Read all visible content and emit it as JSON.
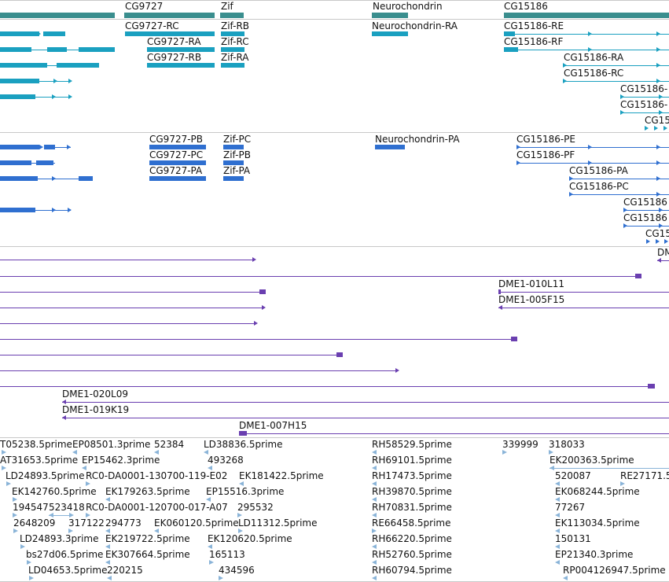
{
  "colors": {
    "gene": "#3a8e8e",
    "transcript_rna": "#1aa0c0",
    "transcript_protein": "#2f6fd0",
    "clone": "#6a3fb0",
    "est": "#8ab4d8",
    "separator": "#c8c8c8"
  },
  "tracks": {
    "genes": {
      "labels": [
        "CG9727",
        "Zif",
        "Neurochondrin",
        "CG15186"
      ]
    },
    "rna": {
      "labels": [
        "CG9727-RC",
        "Zif-RB",
        "Neurochondrin-RA",
        "CG15186-RE",
        "CG9727-RA",
        "Zif-RC",
        "CG15186-RF",
        "CG9727-RB",
        "Zif-RA",
        "CG15186-RA",
        "CG15186-RC",
        "CG15186-",
        "CG15186-",
        "CG15"
      ]
    },
    "protein": {
      "labels": [
        "CG9727-PB",
        "Zif-PC",
        "Neurochondrin-PA",
        "CG15186-PE",
        "CG9727-PC",
        "Zif-PB",
        "CG15186-PF",
        "CG9727-PA",
        "Zif-PA",
        "CG15186-PA",
        "CG15186-PC",
        "CG15186",
        "CG15186",
        "CG15"
      ]
    },
    "clones": {
      "labels": [
        "DM",
        "DME1-010L11",
        "DME1-005F15",
        "DME1-020L09",
        "DME1-019K19",
        "DME1-007H15"
      ]
    },
    "ests": {
      "labels": [
        "T05238.5prime",
        "EP08501.3prime",
        "52384",
        "LD38836.5prime",
        "RH58529.5prime",
        "339999",
        "318033",
        "AT31653.5prime",
        "EP15462.3prime",
        "493268",
        "RH69101.5prime",
        "EK200363.5prime",
        "LD24893.5prime",
        "RC0-DA0001-130700-119-E02",
        "EK181422.5prime",
        "RH17473.5prime",
        "520087",
        "RE27171.5",
        "EK142760.5prime",
        "EK179263.5prime",
        "EP15516.3prime",
        "RH39870.5prime",
        "EK068244.5prime",
        "194547",
        "523418",
        "RC0-DA0001-120700-017-A07",
        "295532",
        "RH70831.5prime",
        "77267",
        "2648209",
        "317122",
        "294773",
        "EK060120.5prime",
        "LD11312.5prime",
        "RE66458.5prime",
        "EK113034.5prime",
        "LD24893.3prime",
        "EK219722.5prime",
        "EK120620.5prime",
        "RH66220.5prime",
        "150131",
        "bs27d06.5prime",
        "EK307664.5prime",
        "165113",
        "RH52760.5prime",
        "EP21340.3prime",
        "LD04653.5prime",
        "220215",
        "434596",
        "RH60794.5prime",
        "RP004126947.5prime"
      ]
    }
  }
}
